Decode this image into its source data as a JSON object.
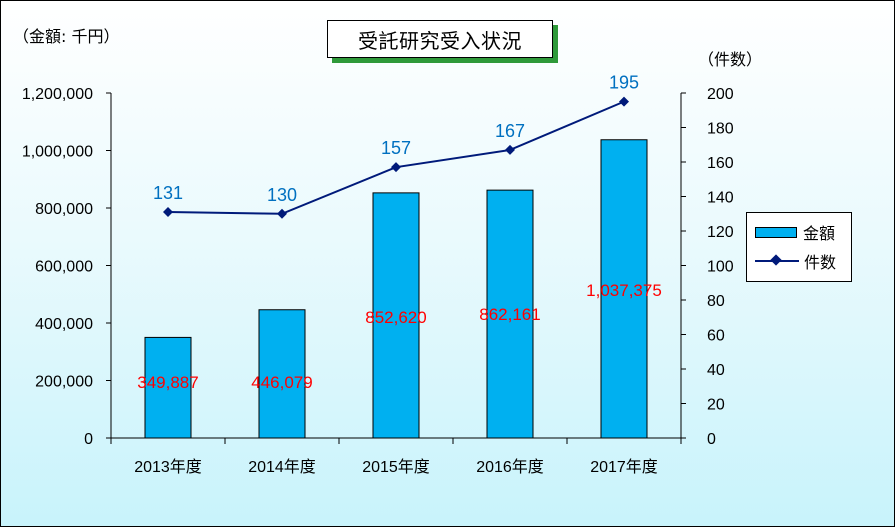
{
  "chart_data": {
    "type": "bar+line",
    "title": "受託研究受入状況",
    "unit_left": "（金額: 千円）",
    "unit_right": "（件数）",
    "categories": [
      "2013年度",
      "2014年度",
      "2015年度",
      "2016年度",
      "2017年度"
    ],
    "series": [
      {
        "name": "金額",
        "type": "bar",
        "axis": "left",
        "values": [
          349887,
          446079,
          852620,
          862161,
          1037375
        ],
        "labels": [
          "349,887",
          "446,079",
          "852,620",
          "862,161",
          "1,037,375"
        ],
        "color": "#00b0f0",
        "label_color": "#ff0000"
      },
      {
        "name": "件数",
        "type": "line",
        "axis": "right",
        "values": [
          131,
          130,
          157,
          167,
          195
        ],
        "labels": [
          "131",
          "130",
          "157",
          "167",
          "195"
        ],
        "color": "#001a7a",
        "label_color": "#0070c0"
      }
    ],
    "y_left": {
      "min": 0,
      "max": 1200000,
      "ticks": [
        "0",
        "200,000",
        "400,000",
        "600,000",
        "800,000",
        "1,000,000",
        "1,200,000"
      ]
    },
    "y_right": {
      "min": 0,
      "max": 200,
      "ticks": [
        "0",
        "20",
        "40",
        "60",
        "80",
        "100",
        "120",
        "140",
        "160",
        "180",
        "200"
      ]
    },
    "grid": false,
    "legend_position": "right"
  }
}
